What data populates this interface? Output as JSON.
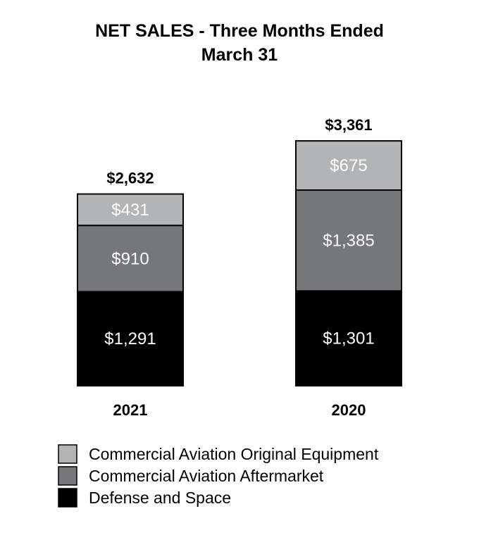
{
  "chart_data": {
    "type": "bar",
    "stacked": true,
    "title_lines": [
      "NET SALES - Three Months Ended",
      "March 31"
    ],
    "categories": [
      "2021",
      "2020"
    ],
    "totals": [
      "$2,632",
      "$3,361"
    ],
    "series": [
      {
        "name": "Defense and Space",
        "color": "#000000",
        "values": [
          1291,
          1301
        ],
        "labels": [
          "$1,291",
          "$1,301"
        ]
      },
      {
        "name": "Commercial Aviation Aftermarket",
        "color": "#75777a",
        "values": [
          910,
          1385
        ],
        "labels": [
          "$910",
          "$1,385"
        ]
      },
      {
        "name": "Commercial Aviation Original Equipment",
        "color": "#b3b4b5",
        "values": [
          431,
          675
        ],
        "labels": [
          "$431",
          "$675"
        ]
      }
    ],
    "legend_order": [
      "Commercial Aviation Original Equipment",
      "Commercial Aviation Aftermarket",
      "Defense and Space"
    ],
    "legend_position": "bottom-left",
    "grid": false
  }
}
